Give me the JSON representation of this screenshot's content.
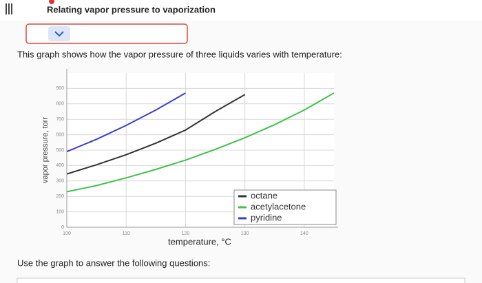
{
  "header": {
    "title": "Relating vapor pressure to vaporization"
  },
  "intro": "This graph shows how the vapor pressure of three liquids varies with temperature:",
  "instruction": "Use the graph to answer the following questions:",
  "chart_data": {
    "type": "line",
    "x_label": "temperature, °C",
    "y_label": "vapor pressure, torr",
    "x": [
      100,
      105,
      110,
      115,
      120,
      125,
      130,
      135,
      140,
      145
    ],
    "series": [
      {
        "name": "octane",
        "color": "#333333",
        "values": [
          345,
          405,
          470,
          545,
          630,
          750,
          860,
          null,
          null,
          null
        ]
      },
      {
        "name": "acetylacetone",
        "color": "#3fc24a",
        "values": [
          230,
          270,
          320,
          375,
          435,
          505,
          580,
          665,
          760,
          870
        ]
      },
      {
        "name": "pyridine",
        "color": "#3b3bd6",
        "values": [
          490,
          570,
          660,
          760,
          870,
          null,
          null,
          null,
          null,
          null
        ]
      }
    ],
    "xlim": [
      100,
      145
    ],
    "ylim": [
      0,
      1000
    ],
    "xticks": [
      100,
      110,
      120,
      130,
      140
    ],
    "yticks": [
      0,
      100,
      200,
      300,
      400,
      500,
      600,
      700,
      800,
      900
    ],
    "grid": true
  }
}
